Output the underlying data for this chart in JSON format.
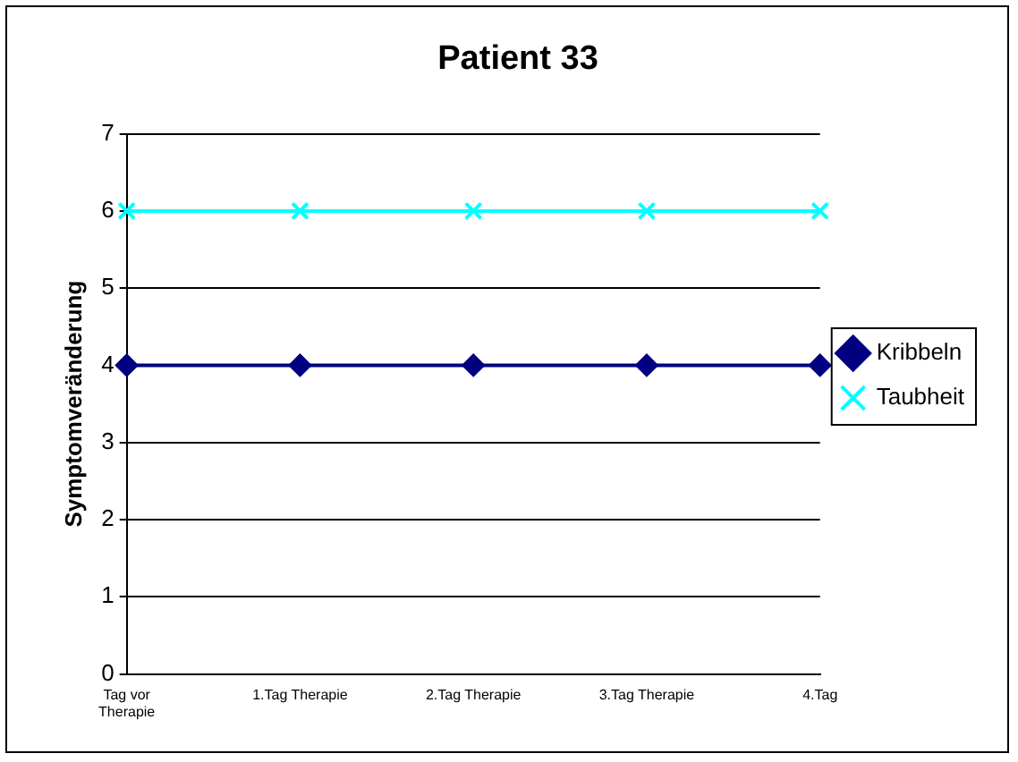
{
  "chart_data": {
    "type": "line",
    "title": "Patient 33",
    "ylabel": "Symptomveränderung",
    "categories": [
      "Tag vor Therapie",
      "1.Tag Therapie",
      "2.Tag Therapie",
      "3.Tag Therapie",
      "4.Tag"
    ],
    "series": [
      {
        "name": "Kribbeln",
        "color": "#000080",
        "marker": "diamond",
        "values": [
          4,
          4,
          4,
          4,
          4
        ]
      },
      {
        "name": "Taubheit",
        "color": "#00ffff",
        "marker": "cross",
        "values": [
          6,
          6,
          6,
          6,
          6
        ]
      }
    ],
    "ylim": [
      0,
      7
    ],
    "yticks": [
      0,
      1,
      2,
      3,
      4,
      5,
      6,
      7
    ],
    "grid": "y",
    "legend": "right",
    "line_style": "solid"
  }
}
